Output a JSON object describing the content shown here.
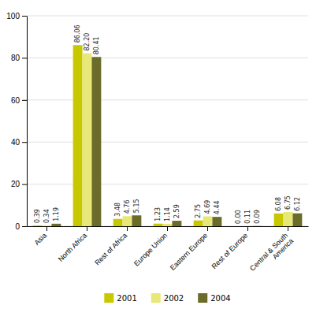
{
  "chart_data": {
    "type": "bar",
    "categories": [
      "Asia",
      "North Africa",
      "Rest of Africa",
      "Europe Union",
      "Eastern Europe",
      "Rest of Europe",
      "Central & South\nAmerica"
    ],
    "series": [
      {
        "name": "2001",
        "color": "#c8c800",
        "values": [
          0.39,
          86.06,
          3.48,
          1.23,
          2.75,
          0,
          6.08
        ],
        "value_labels": [
          "0.39",
          "86.06",
          "3.48",
          "1.23",
          "2.75",
          "0.00",
          "6.08"
        ]
      },
      {
        "name": "2002",
        "color": "#e8e878",
        "values": [
          0.34,
          82.2,
          4.76,
          1.14,
          4.69,
          0.11,
          6.75
        ],
        "value_labels": [
          "0.34",
          "82.20",
          "4.76",
          "1.14",
          "4.69",
          "0.11",
          "6.75"
        ]
      },
      {
        "name": "2004",
        "color": "#6b6b2a",
        "values": [
          1.19,
          80.41,
          5.15,
          2.59,
          4.44,
          0.09,
          6.12
        ],
        "value_labels": [
          "1.19",
          "80.41",
          "5.15",
          "2.59",
          "4.44",
          "0.09",
          "6.12"
        ]
      }
    ],
    "ylim": [
      0,
      100
    ],
    "yticks": [
      0,
      20,
      40,
      60,
      80,
      100
    ],
    "grid": true,
    "legend": "bottom",
    "data_labels": true
  }
}
